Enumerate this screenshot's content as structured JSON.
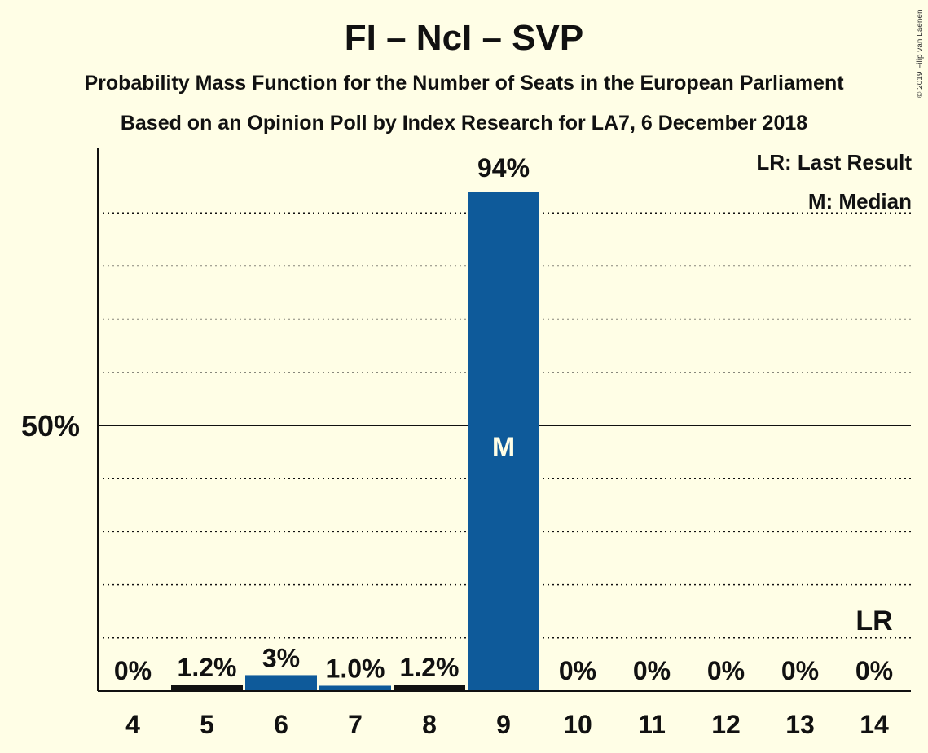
{
  "header": {
    "title": "FI – NcI – SVP",
    "subtitle_1": "Probability Mass Function for the Number of Seats in the European Parliament",
    "subtitle_2": "Based on an Opinion Poll by Index Research for LA7, 6 December 2018",
    "copyright": "© 2019 Filip van Laenen"
  },
  "legend": {
    "last_result": "LR: Last Result",
    "median": "M: Median"
  },
  "colors": {
    "background": "#FFFEE6",
    "bar_blue": "#0E5A9A",
    "bar_black": "#111111"
  },
  "chart_data": {
    "type": "bar",
    "categories": [
      "4",
      "5",
      "6",
      "7",
      "8",
      "9",
      "10",
      "11",
      "12",
      "13",
      "14"
    ],
    "values": [
      0,
      1.2,
      3,
      1.0,
      1.2,
      94,
      0,
      0,
      0,
      0,
      0
    ],
    "labels": [
      "0%",
      "1.2%",
      "3%",
      "1.0%",
      "1.2%",
      "94%",
      "0%",
      "0%",
      "0%",
      "0%",
      "0%"
    ],
    "bar_colors": [
      "blue",
      "black",
      "blue",
      "blue",
      "black",
      "blue",
      "blue",
      "blue",
      "blue",
      "blue",
      "blue"
    ],
    "ylim": [
      0,
      102
    ],
    "y_tick_label": "50%",
    "y_tick_value": 50,
    "gridlines_dotted": [
      10,
      20,
      30,
      40,
      60,
      70,
      80,
      90
    ],
    "median_seat": "9",
    "median_label": "M",
    "last_result_seat": "14",
    "last_result_label": "LR"
  }
}
